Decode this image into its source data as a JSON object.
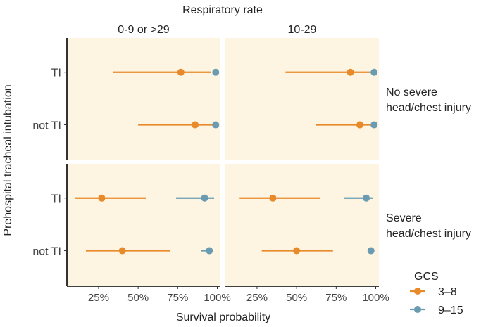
{
  "colors": {
    "panel_bg": "#FDF5E2",
    "gcs_3_8": "#E8892A",
    "gcs_9_15": "#6A9BB1",
    "axis_line": "#000000"
  },
  "chart_data": {
    "type": "point-range",
    "top_title": "Respiratory rate",
    "column_facets": [
      "0-9 or >29",
      "10-29"
    ],
    "row_facets": [
      "No severe\nhead/chest injury",
      "Severe\nhead/chest injury"
    ],
    "y_categories": [
      "TI",
      "not TI"
    ],
    "ylabel": "Prehospital tracheal intubation",
    "xlabel": "Survival probability",
    "xlim": [
      0.05,
      1.02
    ],
    "xticks": [
      0.25,
      0.5,
      0.75,
      1.0
    ],
    "xtick_labels": [
      "25%",
      "50%",
      "75%",
      "100%"
    ],
    "legend": {
      "title": "GCS",
      "entries": [
        "3–8",
        "9–15"
      ],
      "placement": "bottom-right"
    },
    "panels": [
      {
        "col": 0,
        "row": 0,
        "points": [
          {
            "y": "TI",
            "group": "3–8",
            "est": 0.77,
            "lo": 0.34,
            "hi": 0.96
          },
          {
            "y": "TI",
            "group": "9–15",
            "est": 0.99,
            "lo": 0.97,
            "hi": 1.0
          },
          {
            "y": "not TI",
            "group": "3–8",
            "est": 0.86,
            "lo": 0.5,
            "hi": 0.98
          },
          {
            "y": "not TI",
            "group": "9–15",
            "est": 0.99,
            "lo": 0.98,
            "hi": 1.0
          }
        ]
      },
      {
        "col": 1,
        "row": 0,
        "points": [
          {
            "y": "TI",
            "group": "3–8",
            "est": 0.84,
            "lo": 0.43,
            "hi": 0.96
          },
          {
            "y": "TI",
            "group": "9–15",
            "est": 0.99,
            "lo": 0.96,
            "hi": 1.0
          },
          {
            "y": "not TI",
            "group": "3–8",
            "est": 0.9,
            "lo": 0.62,
            "hi": 0.98
          },
          {
            "y": "not TI",
            "group": "9–15",
            "est": 0.99,
            "lo": 0.98,
            "hi": 1.0
          }
        ]
      },
      {
        "col": 0,
        "row": 1,
        "points": [
          {
            "y": "TI",
            "group": "3–8",
            "est": 0.27,
            "lo": 0.1,
            "hi": 0.55
          },
          {
            "y": "TI",
            "group": "9–15",
            "est": 0.92,
            "lo": 0.74,
            "hi": 0.98
          },
          {
            "y": "not TI",
            "group": "3–8",
            "est": 0.4,
            "lo": 0.17,
            "hi": 0.7
          },
          {
            "y": "not TI",
            "group": "9–15",
            "est": 0.95,
            "lo": 0.9,
            "hi": 0.97
          }
        ]
      },
      {
        "col": 1,
        "row": 1,
        "points": [
          {
            "y": "TI",
            "group": "3–8",
            "est": 0.35,
            "lo": 0.14,
            "hi": 0.65
          },
          {
            "y": "TI",
            "group": "9–15",
            "est": 0.94,
            "lo": 0.8,
            "hi": 0.98
          },
          {
            "y": "not TI",
            "group": "3–8",
            "est": 0.5,
            "lo": 0.28,
            "hi": 0.73
          },
          {
            "y": "not TI",
            "group": "9–15",
            "est": 0.97,
            "lo": 0.95,
            "hi": 0.98
          }
        ]
      }
    ]
  }
}
